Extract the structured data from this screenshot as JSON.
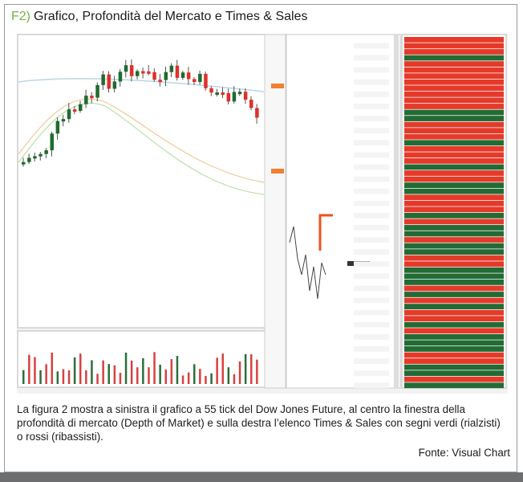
{
  "header": {
    "label": "F2)",
    "title": "Grafico, Profondità del Mercato e Times & Sales"
  },
  "caption": "La figura 2 mostra a sinistra il grafico a 55 tick del Dow Jones Future, al centro la finestra della profondità di mercato (Depth of Market) e sulla destra l’elenco Times & Sales con segni verdi (rialzisti) o rossi (ribassisti).",
  "source": "Fonte: Visual Chart"
}
